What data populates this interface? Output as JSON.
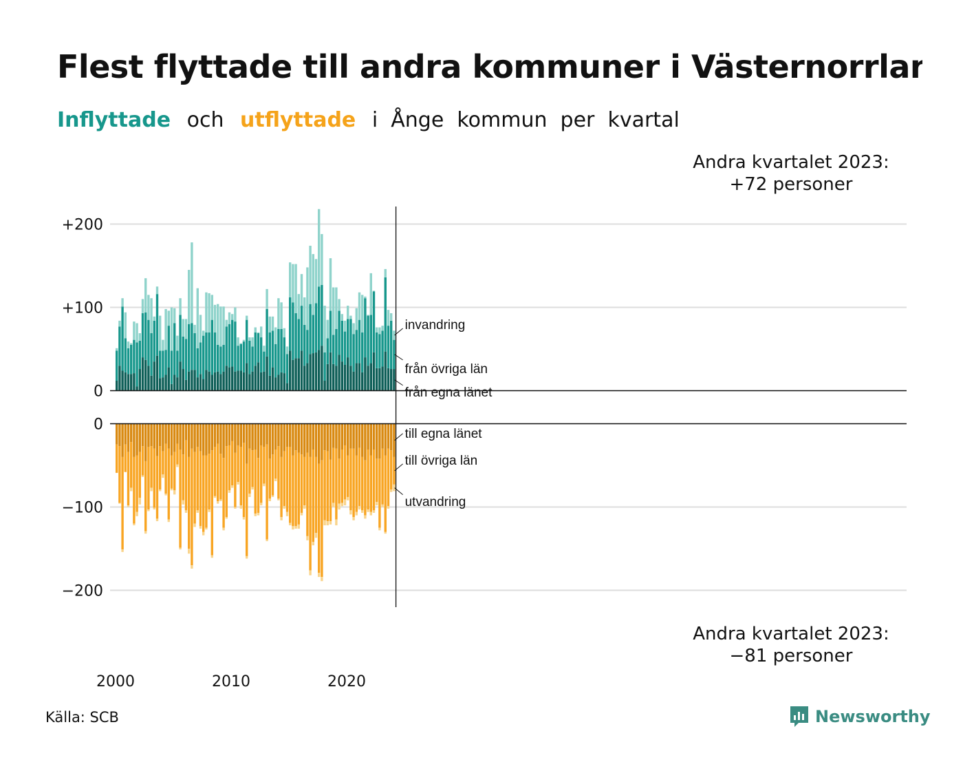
{
  "title": "Flest flyttade till andra kommuner i Västernorrland",
  "subtitle": {
    "in_word": "Inflyttade",
    "and_word": "och",
    "out_word": "utflyttade",
    "rest": "i  Ånge  kommun  per  kvartal"
  },
  "callout_top": {
    "line1": "Andra kvartalet 2023:",
    "line2": "+72 personer"
  },
  "callout_bottom": {
    "line1": "Andra kvartalet 2023:",
    "line2": "−81 personer"
  },
  "source": "Källa: SCB",
  "logo": {
    "icon": "newsworthy-chat-bar-icon",
    "text": "Newsworthy"
  },
  "colors": {
    "in_dark": "#0f5f58",
    "in_mid": "#17978c",
    "in_light": "#8fd3cb",
    "out_dark": "#d98a12",
    "out_mid": "#f8a523",
    "out_light": "#f9d48c",
    "grid": "#dddddd"
  },
  "chart_data": {
    "type": "bar",
    "stacked": true,
    "diverging": true,
    "title": "Flest flyttade till andra kommuner i Västernorrland",
    "x_start": "2000 Q1",
    "x_end": "2023 Q2",
    "x_tick_labels": [
      "2000",
      "2010",
      "2020"
    ],
    "y_top_ticks": [
      "+200",
      "+100",
      "0"
    ],
    "y_bottom_ticks": [
      "0",
      "−100",
      "−200"
    ],
    "ylim_top": [
      0,
      220
    ],
    "ylim_bottom": [
      -220,
      0
    ],
    "grid": true,
    "annotations_top": [
      "invandring",
      "från övriga län",
      "från egna länet"
    ],
    "annotations_bottom": [
      "till egna länet",
      "till övriga län",
      "utvandring"
    ],
    "series_in": [
      {
        "name": "från egna länet",
        "values": [
          12,
          30,
          24,
          22,
          20,
          20,
          21,
          5,
          26,
          40,
          37,
          30,
          18,
          35,
          42,
          15,
          16,
          19,
          28,
          8,
          19,
          16,
          35,
          26,
          13,
          23,
          25,
          25,
          16,
          20,
          14,
          25,
          23,
          19,
          22,
          23,
          20,
          23,
          30,
          28,
          29,
          23,
          24,
          24,
          22,
          33,
          20,
          23,
          30,
          34,
          22,
          23,
          41,
          18,
          28,
          16,
          19,
          22,
          21,
          9,
          48,
          37,
          39,
          39,
          48,
          30,
          33,
          44,
          45,
          46,
          49,
          54,
          12,
          32,
          46,
          32,
          30,
          43,
          35,
          31,
          40,
          30,
          23,
          33,
          33,
          22,
          40,
          30,
          33,
          46,
          27,
          27,
          29,
          47,
          27,
          26,
          26
        ]
      },
      {
        "name": "från övriga län",
        "values": [
          36,
          47,
          77,
          41,
          31,
          35,
          40,
          53,
          34,
          53,
          57,
          55,
          51,
          49,
          74,
          33,
          32,
          30,
          50,
          40,
          62,
          32,
          56,
          39,
          49,
          57,
          56,
          44,
          35,
          38,
          52,
          45,
          47,
          66,
          48,
          32,
          33,
          32,
          47,
          52,
          56,
          60,
          30,
          32,
          37,
          52,
          40,
          30,
          40,
          35,
          42,
          24,
          57,
          52,
          44,
          40,
          55,
          52,
          43,
          35,
          64,
          69,
          54,
          47,
          54,
          49,
          40,
          60,
          46,
          59,
          76,
          73,
          34,
          31,
          50,
          35,
          44,
          53,
          49,
          40,
          46,
          56,
          45,
          40,
          52,
          48,
          71,
          60,
          58,
          73,
          43,
          41,
          43,
          89,
          51,
          58,
          35
        ]
      },
      {
        "name": "invandring",
        "values": [
          3,
          7,
          10,
          31,
          8,
          2,
          22,
          23,
          9,
          17,
          41,
          30,
          42,
          5,
          9,
          42,
          13,
          49,
          18,
          52,
          18,
          18,
          20,
          21,
          24,
          65,
          97,
          10,
          72,
          33,
          6,
          48,
          47,
          30,
          33,
          49,
          48,
          46,
          8,
          14,
          7,
          17,
          10,
          1,
          2,
          5,
          4,
          11,
          6,
          1,
          13,
          7,
          24,
          19,
          17,
          20,
          37,
          32,
          11,
          9,
          42,
          46,
          59,
          30,
          38,
          33,
          75,
          70,
          73,
          53,
          93,
          61,
          56,
          22,
          63,
          57,
          50,
          14,
          8,
          13,
          16,
          4,
          13,
          26,
          33,
          45,
          2,
          1,
          50,
          1,
          6,
          8,
          6,
          10,
          19,
          9,
          11
        ]
      }
    ],
    "series_out": [
      {
        "name": "till egna länet",
        "values": [
          -25,
          -27,
          -40,
          -25,
          -34,
          -22,
          -40,
          -38,
          -34,
          -27,
          -45,
          -28,
          -27,
          -30,
          -39,
          -27,
          -33,
          -24,
          -30,
          -38,
          -34,
          -24,
          -31,
          -37,
          -20,
          -40,
          -30,
          -34,
          -28,
          -33,
          -38,
          -38,
          -36,
          -32,
          -28,
          -24,
          -36,
          -41,
          -27,
          -26,
          -21,
          -35,
          -26,
          -28,
          -23,
          -48,
          -30,
          -32,
          -31,
          -41,
          -26,
          -28,
          -25,
          -42,
          -37,
          -31,
          -27,
          -40,
          -33,
          -28,
          -28,
          -38,
          -32,
          -35,
          -37,
          -40,
          -35,
          -40,
          -31,
          -40,
          -48,
          -44,
          -32,
          -33,
          -43,
          -29,
          -30,
          -42,
          -31,
          -26,
          -38,
          -30,
          -30,
          -38,
          -29,
          -40,
          -44,
          -31,
          -38,
          -31,
          -42,
          -42,
          -30,
          -38,
          -30,
          -32,
          -40
        ]
      },
      {
        "name": "till övriga län",
        "values": [
          -34,
          -68,
          -111,
          -33,
          -64,
          -55,
          -80,
          -68,
          -55,
          -35,
          -84,
          -75,
          -50,
          -71,
          -75,
          -52,
          -28,
          -60,
          -85,
          -40,
          -46,
          -25,
          -118,
          -55,
          -84,
          -110,
          -140,
          -86,
          -76,
          -90,
          -92,
          -87,
          -67,
          -126,
          -59,
          -69,
          -55,
          -84,
          -85,
          -54,
          -53,
          -65,
          -44,
          -70,
          -89,
          -111,
          -54,
          -44,
          -77,
          -66,
          -69,
          -44,
          -114,
          -48,
          -49,
          -35,
          -63,
          -72,
          -66,
          -78,
          -91,
          -85,
          -91,
          -86,
          -70,
          -58,
          -100,
          -136,
          -111,
          -91,
          -131,
          -140,
          -84,
          -84,
          -74,
          -66,
          -85,
          -54,
          -64,
          -65,
          -50,
          -74,
          -82,
          -68,
          -70,
          -64,
          -66,
          -72,
          -68,
          -73,
          -52,
          -83,
          -67,
          -92,
          -69,
          -47,
          -33
        ]
      },
      {
        "name": "utvandring",
        "values": [
          0,
          -1,
          -3,
          0,
          -2,
          -4,
          -2,
          -5,
          -8,
          -2,
          -3,
          -2,
          -4,
          -2,
          -3,
          -2,
          -4,
          -2,
          -3,
          -2,
          -5,
          -3,
          -2,
          -5,
          -3,
          -6,
          -4,
          -4,
          -3,
          -3,
          -4,
          -2,
          -3,
          -3,
          -2,
          -3,
          -2,
          -3,
          -2,
          -3,
          -3,
          -2,
          -3,
          -4,
          -3,
          -3,
          -4,
          -3,
          -3,
          -3,
          -3,
          -3,
          -2,
          -3,
          -2,
          -3,
          -2,
          -4,
          -3,
          -5,
          -3,
          -4,
          -3,
          -5,
          -3,
          -4,
          -5,
          -6,
          -4,
          -6,
          -5,
          -5,
          -6,
          -5,
          -4,
          -5,
          -7,
          -7,
          -4,
          -7,
          -4,
          -5,
          -4,
          -4,
          -4,
          -3,
          -4,
          -3,
          -4,
          -3,
          -4,
          -3,
          -3,
          -2,
          -3,
          -3,
          -8
        ]
      }
    ]
  }
}
